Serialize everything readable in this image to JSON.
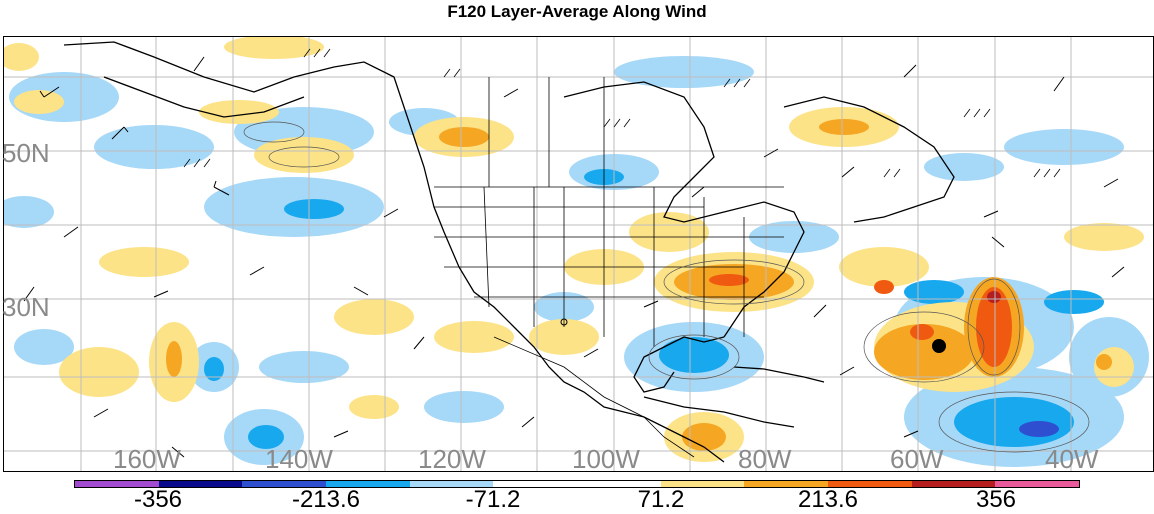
{
  "title": "F120 Layer-Average Along Wind",
  "lat_labels": [
    "50N",
    "30N"
  ],
  "lon_labels": [
    "160W",
    "140W",
    "120W",
    "100W",
    "80W",
    "60W",
    "40W"
  ],
  "colorbar": {
    "colors": [
      "#a24bd1",
      "#0a0a8c",
      "#2e4fd0",
      "#18a8ee",
      "#a6d8f7",
      "#ffffff",
      "#ffffff",
      "#fde387",
      "#f5a623",
      "#f05a10",
      "#b41e1e",
      "#e85a9a"
    ],
    "labels": [
      "-356",
      "-213.6",
      "-71.2",
      "71.2",
      "213.6",
      "356"
    ]
  },
  "palette": {
    "light_blue": "#a6d8f7",
    "mid_blue": "#18a8ee",
    "dark_blue": "#2e4fd0",
    "yellow": "#fde387",
    "orange": "#f5a623",
    "red_orange": "#f05a10",
    "dark_red": "#b41e1e"
  }
}
